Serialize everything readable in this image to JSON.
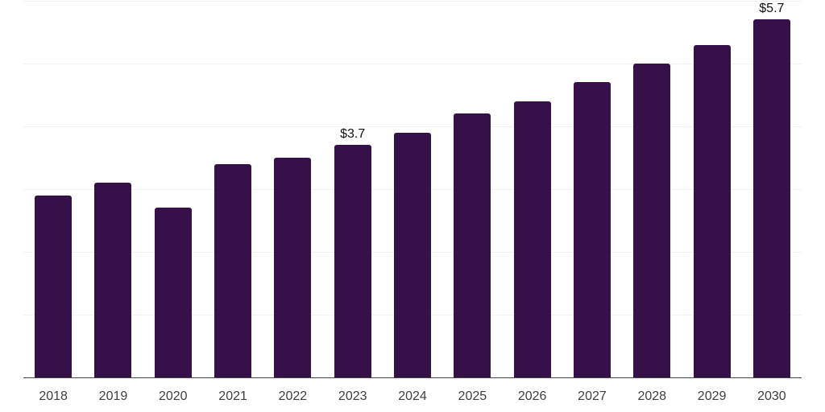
{
  "chart_data": {
    "type": "bar",
    "title": "",
    "xlabel": "",
    "ylabel": "",
    "categories": [
      "2018",
      "2019",
      "2020",
      "2021",
      "2022",
      "2023",
      "2024",
      "2025",
      "2026",
      "2027",
      "2028",
      "2029",
      "2030"
    ],
    "values": [
      2.9,
      3.1,
      2.7,
      3.4,
      3.5,
      3.7,
      3.9,
      4.2,
      4.4,
      4.7,
      5.0,
      5.3,
      5.7
    ],
    "data_labels": {
      "2023": "$3.7",
      "2030": "$5.7"
    },
    "ylim": [
      0,
      6
    ],
    "gridline_step": 1,
    "grid": "horizontal-only",
    "legend": "none",
    "y_tick_labels_visible": false,
    "colors": {
      "bar": "#361149",
      "gridline": "#f1f1f1",
      "axis_line": "#444444",
      "tick_label": "#3e3e3e",
      "data_label": "#111111",
      "background": "#ffffff"
    }
  }
}
